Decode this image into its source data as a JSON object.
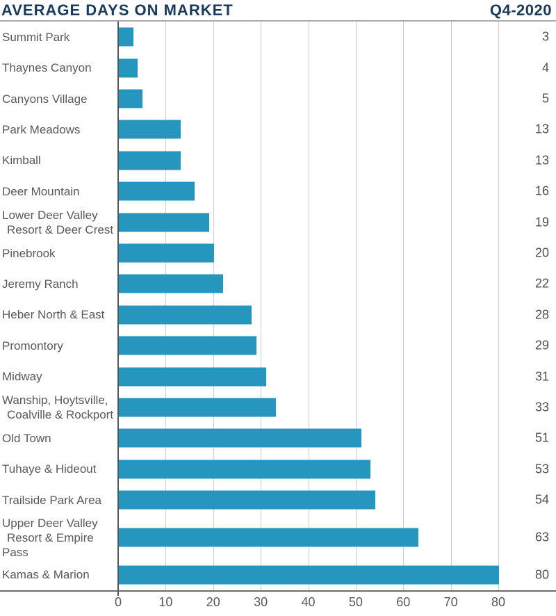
{
  "header": {
    "title": "AVERAGE DAYS ON MARKET",
    "period": "Q4-2020"
  },
  "colors": {
    "title_navy": "#1A3A5C",
    "bar_teal": "#2696BE",
    "label_gray": "#58595B",
    "gridline_gray": "#CBCBCB",
    "axis_gray": "#6B6C6E"
  },
  "chart_data": {
    "type": "bar",
    "orientation": "horizontal",
    "title": "AVERAGE DAYS ON MARKET",
    "subtitle": "Q4-2020",
    "xlabel": "",
    "ylabel": "",
    "grid": true,
    "xlim": [
      0,
      80
    ],
    "x_ticks": [
      0,
      10,
      20,
      30,
      40,
      50,
      60,
      70,
      80
    ],
    "bar_color": "#2696BE",
    "value_label_position": "right",
    "categories": [
      "Summit Park",
      "Thaynes Canyon",
      "Canyons Village",
      "Park Meadows",
      "Kimball",
      "Deer Mountain",
      "Lower Deer Valley Resort & Deer Crest",
      "Pinebrook",
      "Jeremy Ranch",
      "Heber North & East",
      "Promontory",
      "Midway",
      "Wanship, Hoytsville, Coalville & Rockport",
      "Old Town",
      "Tuhaye & Hideout",
      "Trailside Park Area",
      "Upper Deer Valley Resort & Empire Pass",
      "Kamas & Marion"
    ],
    "category_lines": [
      [
        "Summit Park"
      ],
      [
        "Thaynes Canyon"
      ],
      [
        "Canyons Village"
      ],
      [
        "Park Meadows"
      ],
      [
        "Kimball"
      ],
      [
        "Deer Mountain"
      ],
      [
        "Lower Deer Valley",
        "Resort & Deer Crest"
      ],
      [
        "Pinebrook"
      ],
      [
        "Jeremy Ranch"
      ],
      [
        "Heber North & East"
      ],
      [
        "Promontory"
      ],
      [
        "Midway"
      ],
      [
        "Wanship, Hoytsville,",
        "Coalville & Rockport"
      ],
      [
        "Old Town"
      ],
      [
        "Tuhaye & Hideout"
      ],
      [
        "Trailside Park Area"
      ],
      [
        "Upper Deer Valley",
        "Resort & Empire Pass"
      ],
      [
        "Kamas & Marion"
      ]
    ],
    "values": [
      3,
      4,
      5,
      13,
      13,
      16,
      19,
      20,
      22,
      28,
      29,
      31,
      33,
      51,
      53,
      54,
      63,
      80
    ]
  }
}
